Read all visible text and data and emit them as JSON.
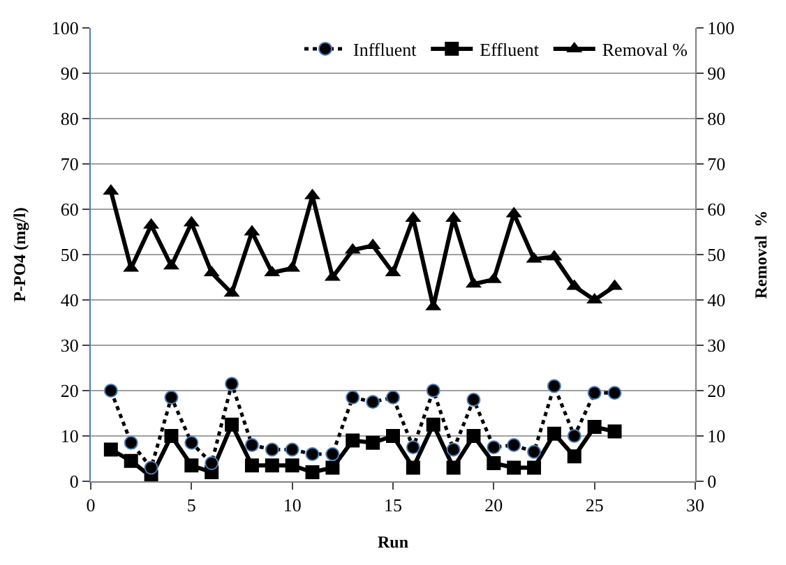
{
  "chart_data": {
    "type": "line",
    "xlabel": "Run",
    "ylabel": "P-PO4 (mg/l)",
    "y2label": "Removal  %",
    "x": [
      1,
      2,
      3,
      4,
      5,
      6,
      7,
      8,
      9,
      10,
      11,
      12,
      13,
      14,
      15,
      16,
      17,
      18,
      19,
      20,
      21,
      22,
      23,
      24,
      25,
      26
    ],
    "series": [
      {
        "name": "Inffluent",
        "color": "#000000",
        "marker": "circle",
        "line_style": "dotted",
        "values": [
          20,
          8.5,
          3,
          18.5,
          8.5,
          4,
          21.5,
          8,
          7,
          7,
          6,
          6,
          18.5,
          17.5,
          18.5,
          7.5,
          20,
          7,
          18,
          7.5,
          8,
          6.5,
          21,
          10,
          19.5,
          19.5
        ]
      },
      {
        "name": "Effluent",
        "color": "#000000",
        "marker": "square",
        "line_style": "solid",
        "values": [
          7,
          4.5,
          1,
          10,
          3.5,
          2,
          12.5,
          3.5,
          3.5,
          3.5,
          2,
          3,
          9,
          8.5,
          10,
          3,
          12.5,
          3,
          10,
          4,
          3,
          3,
          10.5,
          5.5,
          12,
          11
        ]
      },
      {
        "name": "Removal %",
        "color": "#000000",
        "marker": "triangle",
        "line_style": "solid",
        "axis": "y2",
        "values": [
          64,
          47,
          56.5,
          47.5,
          57,
          46,
          41.5,
          55,
          46,
          47,
          63,
          45,
          51,
          52,
          46,
          58,
          38.5,
          58,
          43.5,
          44.5,
          59,
          49,
          49.5,
          43,
          40,
          43
        ]
      }
    ],
    "xlim": [
      0,
      30
    ],
    "xticks": [
      0,
      5,
      10,
      15,
      20,
      25,
      30
    ],
    "ylim": [
      0,
      100
    ],
    "yticks": [
      0,
      10,
      20,
      30,
      40,
      50,
      60,
      70,
      80,
      90,
      100
    ],
    "y2lim": [
      0,
      100
    ],
    "y2ticks": [
      0,
      10,
      20,
      30,
      40,
      50,
      60,
      70,
      80,
      90,
      100
    ],
    "grid": "y",
    "legend": "top right"
  }
}
